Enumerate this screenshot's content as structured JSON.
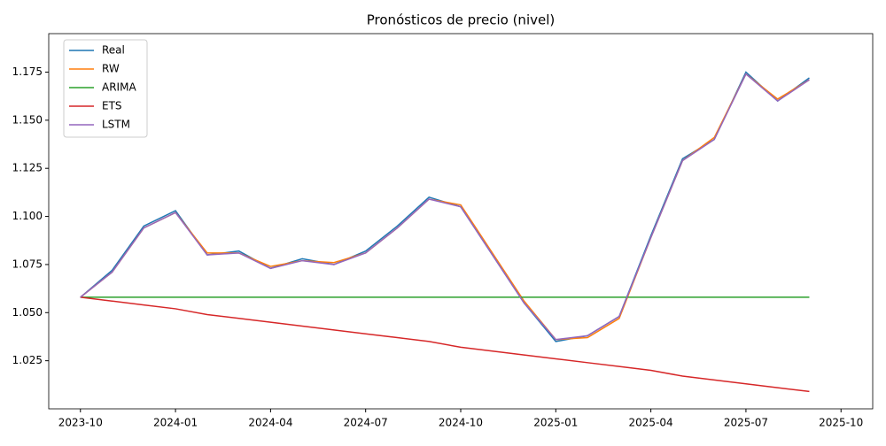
{
  "chart_data": {
    "type": "line",
    "title": "Pronósticos de precio (nivel)",
    "x": [
      "2023-10",
      "2023-11",
      "2023-12",
      "2024-01",
      "2024-02",
      "2024-03",
      "2024-04",
      "2024-05",
      "2024-06",
      "2024-07",
      "2024-08",
      "2024-09",
      "2024-10",
      "2024-11",
      "2024-12",
      "2025-01",
      "2025-02",
      "2025-03",
      "2025-04",
      "2025-05",
      "2025-06",
      "2025-07",
      "2025-08",
      "2025-09"
    ],
    "series": [
      {
        "name": "Real",
        "color": "#1f77b4",
        "values": [
          1.058,
          1.072,
          1.095,
          1.103,
          1.08,
          1.082,
          1.073,
          1.078,
          1.075,
          1.082,
          1.095,
          1.11,
          1.105,
          1.08,
          1.055,
          1.035,
          1.038,
          1.048,
          1.09,
          1.13,
          1.14,
          1.175,
          1.16,
          1.172
        ]
      },
      {
        "name": "RW",
        "color": "#ff7f0e",
        "values": [
          1.058,
          1.071,
          1.094,
          1.102,
          1.081,
          1.081,
          1.074,
          1.077,
          1.076,
          1.081,
          1.094,
          1.109,
          1.106,
          1.081,
          1.056,
          1.036,
          1.037,
          1.047,
          1.089,
          1.129,
          1.141,
          1.174,
          1.161,
          1.171
        ]
      },
      {
        "name": "ARIMA",
        "color": "#2ca02c",
        "values": [
          1.058,
          1.058,
          1.058,
          1.058,
          1.058,
          1.058,
          1.058,
          1.058,
          1.058,
          1.058,
          1.058,
          1.058,
          1.058,
          1.058,
          1.058,
          1.058,
          1.058,
          1.058,
          1.058,
          1.058,
          1.058,
          1.058,
          1.058,
          1.058
        ]
      },
      {
        "name": "ETS",
        "color": "#d62728",
        "values": [
          1.058,
          1.056,
          1.054,
          1.052,
          1.049,
          1.047,
          1.045,
          1.043,
          1.041,
          1.039,
          1.037,
          1.035,
          1.032,
          1.03,
          1.028,
          1.026,
          1.024,
          1.022,
          1.02,
          1.017,
          1.015,
          1.013,
          1.011,
          1.009
        ]
      },
      {
        "name": "LSTM",
        "color": "#9467bd",
        "values": [
          1.058,
          1.071,
          1.094,
          1.102,
          1.08,
          1.081,
          1.073,
          1.077,
          1.075,
          1.081,
          1.094,
          1.109,
          1.105,
          1.08,
          1.055,
          1.036,
          1.038,
          1.048,
          1.089,
          1.129,
          1.14,
          1.174,
          1.16,
          1.171
        ]
      }
    ],
    "xlim": [
      "2023-09",
      "2025-11"
    ],
    "xticks": [
      "2023-10",
      "2024-01",
      "2024-04",
      "2024-07",
      "2024-10",
      "2025-01",
      "2025-04",
      "2025-07",
      "2025-10"
    ],
    "ylim": [
      1.0,
      1.195
    ],
    "yticks": [
      1.025,
      {
        "value": 1.05,
        "label": "1.050"
      },
      1.075,
      {
        "value": 1.1,
        "label": "1.100"
      },
      1.125,
      {
        "value": 1.15,
        "label": "1.150"
      },
      1.175
    ],
    "legend": "upper left"
  }
}
